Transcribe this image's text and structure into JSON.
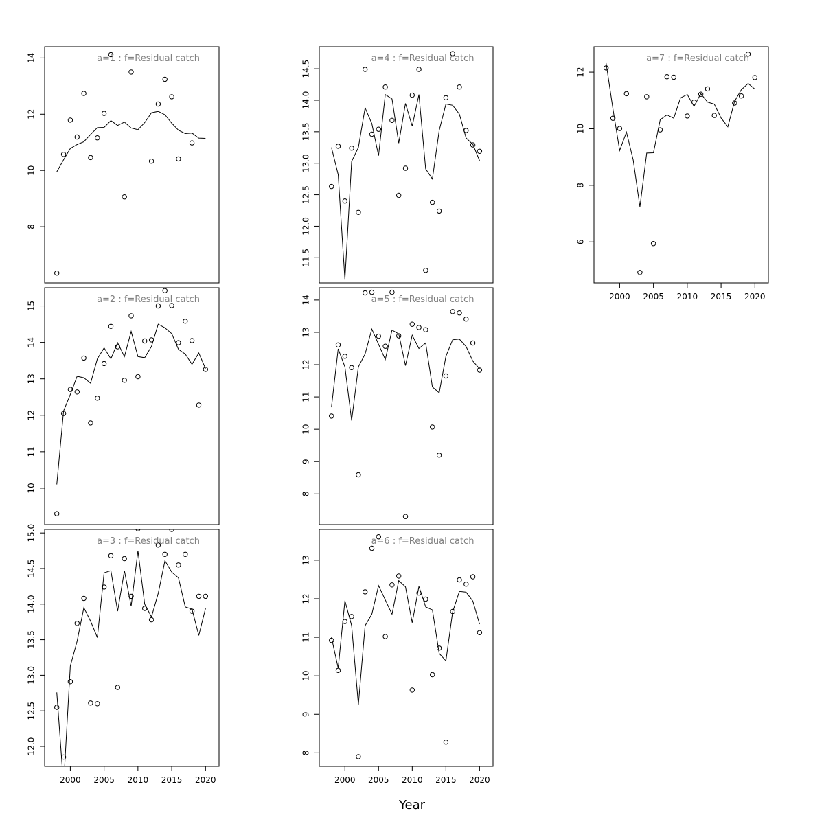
{
  "figure": {
    "xlabel": "Year",
    "marker": "open-circle",
    "line_color": "#000000",
    "title_color": "#808080"
  },
  "chart_data": [
    {
      "type": "scatter",
      "title": "a=1  :  f=Residual catch",
      "xlim": [
        1996.2,
        2022.0
      ],
      "ylim": [
        6.0,
        14.4
      ],
      "xticks": [],
      "yticks": [
        8,
        10,
        12,
        14
      ],
      "series": [
        {
          "kind": "points",
          "x": [
            1998,
            1999,
            2000,
            2001,
            2002,
            2003,
            2004,
            2005,
            2006,
            2008,
            2009,
            2012,
            2013,
            2014,
            2015,
            2016,
            2018
          ],
          "y": [
            6.35,
            10.57,
            11.79,
            11.19,
            12.74,
            10.46,
            11.16,
            12.03,
            14.12,
            9.06,
            13.5,
            10.33,
            12.36,
            13.24,
            12.62,
            10.41,
            10.98
          ]
        },
        {
          "kind": "line",
          "x": [
            1998,
            1999,
            2000,
            2001,
            2002,
            2003,
            2004,
            2005,
            2006,
            2007,
            2008,
            2009,
            2010,
            2011,
            2012,
            2013,
            2014,
            2015,
            2016,
            2017,
            2018,
            2019,
            2020
          ],
          "y": [
            9.95,
            10.38,
            10.78,
            10.92,
            11.02,
            11.28,
            11.52,
            11.53,
            11.77,
            11.6,
            11.72,
            11.51,
            11.45,
            11.7,
            12.05,
            12.1,
            11.98,
            11.68,
            11.43,
            11.31,
            11.33,
            11.15,
            11.14
          ]
        }
      ]
    },
    {
      "type": "scatter",
      "title": "a=2  :  f=Residual catch",
      "xlim": [
        1996.2,
        2022.0
      ],
      "ylim": [
        9.0,
        15.5
      ],
      "xticks": [],
      "yticks": [
        10,
        11,
        12,
        13,
        14,
        15
      ],
      "series": [
        {
          "kind": "points",
          "x": [
            1998,
            1999,
            2000,
            2001,
            2002,
            2003,
            2004,
            2005,
            2006,
            2007,
            2008,
            2009,
            2010,
            2011,
            2012,
            2013,
            2014,
            2015,
            2016,
            2017,
            2018,
            2019,
            2020
          ],
          "y": [
            9.3,
            12.05,
            12.71,
            12.64,
            13.57,
            11.79,
            12.47,
            13.42,
            14.44,
            13.88,
            12.96,
            14.73,
            13.06,
            14.04,
            14.07,
            15.0,
            15.42,
            15.01,
            13.99,
            14.58,
            14.05,
            12.28,
            13.26
          ]
        },
        {
          "kind": "line",
          "x": [
            1998,
            1999,
            2000,
            2001,
            2002,
            2003,
            2004,
            2005,
            2006,
            2007,
            2008,
            2009,
            2010,
            2011,
            2012,
            2013,
            2014,
            2015,
            2016,
            2017,
            2018,
            2019,
            2020
          ],
          "y": [
            10.1,
            12.12,
            12.57,
            13.07,
            13.03,
            12.88,
            13.55,
            13.85,
            13.55,
            13.99,
            13.61,
            14.3,
            13.61,
            13.58,
            13.89,
            14.5,
            14.4,
            14.24,
            13.81,
            13.68,
            13.4,
            13.71,
            13.28
          ]
        }
      ]
    },
    {
      "type": "scatter",
      "title": "a=3  :  f=Residual catch",
      "xlim": [
        1996.2,
        2022.0
      ],
      "ylim": [
        11.72,
        15.05
      ],
      "xticks": [
        2000,
        2005,
        2010,
        2015,
        2020
      ],
      "yticks": [
        12.0,
        12.5,
        13.0,
        13.5,
        14.0,
        14.5,
        15.0
      ],
      "series": [
        {
          "kind": "points",
          "x": [
            1998,
            1999,
            2000,
            2001,
            2002,
            2003,
            2004,
            2005,
            2006,
            2007,
            2008,
            2009,
            2010,
            2011,
            2012,
            2013,
            2014,
            2015,
            2016,
            2017,
            2018,
            2019,
            2020
          ],
          "y": [
            12.55,
            11.85,
            12.91,
            13.73,
            14.08,
            12.61,
            12.6,
            14.24,
            14.68,
            12.83,
            14.64,
            14.11,
            15.06,
            13.94,
            13.78,
            14.83,
            14.7,
            15.05,
            14.55,
            14.7,
            13.9,
            14.11,
            14.11
          ]
        },
        {
          "kind": "line",
          "x": [
            1998,
            1999,
            2000,
            2001,
            2002,
            2003,
            2004,
            2005,
            2006,
            2007,
            2008,
            2009,
            2010,
            2011,
            2012,
            2013,
            2014,
            2015,
            2016,
            2017,
            2018,
            2019,
            2020
          ],
          "y": [
            12.76,
            11.45,
            13.13,
            13.48,
            13.95,
            13.76,
            13.53,
            14.44,
            14.47,
            13.9,
            14.47,
            13.97,
            14.75,
            14.0,
            13.82,
            14.15,
            14.61,
            14.45,
            14.37,
            13.96,
            13.93,
            13.56,
            13.94
          ]
        }
      ]
    },
    {
      "type": "scatter",
      "title": "a=4  :  f=Residual catch",
      "xlim": [
        1996.2,
        2022.0
      ],
      "ylim": [
        11.1,
        14.85
      ],
      "xticks": [],
      "yticks": [
        11.5,
        12.0,
        12.5,
        13.0,
        13.5,
        14.0,
        14.5
      ],
      "series": [
        {
          "kind": "points",
          "x": [
            1998,
            1999,
            2000,
            2001,
            2002,
            2003,
            2004,
            2005,
            2006,
            2007,
            2008,
            2009,
            2010,
            2011,
            2012,
            2013,
            2014,
            2015,
            2016,
            2017,
            2018,
            2019,
            2020
          ],
          "y": [
            12.63,
            13.27,
            12.4,
            13.24,
            12.22,
            14.49,
            13.46,
            13.54,
            14.21,
            13.68,
            12.49,
            12.92,
            14.08,
            14.49,
            11.3,
            12.38,
            12.24,
            14.04,
            14.74,
            14.21,
            13.52,
            13.29,
            13.19
          ]
        },
        {
          "kind": "line",
          "x": [
            1998,
            1999,
            2000,
            2001,
            2002,
            2003,
            2004,
            2005,
            2006,
            2007,
            2008,
            2009,
            2010,
            2011,
            2012,
            2013,
            2014,
            2015,
            2016,
            2017,
            2018,
            2019,
            2020
          ],
          "y": [
            13.25,
            12.82,
            11.15,
            13.03,
            13.25,
            13.88,
            13.63,
            13.12,
            14.09,
            14.02,
            13.32,
            13.95,
            13.59,
            14.09,
            12.91,
            12.75,
            13.52,
            13.94,
            13.92,
            13.78,
            13.4,
            13.3,
            13.04
          ]
        }
      ]
    },
    {
      "type": "scatter",
      "title": "a=5  :  f=Residual catch",
      "xlim": [
        1996.2,
        2022.0
      ],
      "ylim": [
        7.05,
        14.38
      ],
      "xticks": [],
      "yticks": [
        8,
        9,
        10,
        11,
        12,
        13,
        14
      ],
      "series": [
        {
          "kind": "points",
          "x": [
            1998,
            1999,
            2000,
            2001,
            2002,
            2003,
            2004,
            2005,
            2006,
            2007,
            2008,
            2009,
            2010,
            2011,
            2012,
            2013,
            2014,
            2015,
            2016,
            2017,
            2018,
            2019,
            2020
          ],
          "y": [
            10.41,
            12.61,
            12.26,
            11.91,
            8.59,
            14.22,
            14.24,
            12.88,
            12.57,
            14.24,
            12.89,
            7.3,
            13.25,
            13.15,
            13.08,
            10.07,
            9.2,
            11.65,
            13.64,
            13.6,
            13.41,
            12.67,
            11.83
          ]
        },
        {
          "kind": "line",
          "x": [
            1998,
            1999,
            2000,
            2001,
            2002,
            2003,
            2004,
            2005,
            2006,
            2007,
            2008,
            2009,
            2010,
            2011,
            2012,
            2013,
            2014,
            2015,
            2016,
            2017,
            2018,
            2019,
            2020
          ],
          "y": [
            10.68,
            12.49,
            11.93,
            10.27,
            11.93,
            12.33,
            13.1,
            12.63,
            12.16,
            13.07,
            12.95,
            11.97,
            12.91,
            12.5,
            12.67,
            11.31,
            11.13,
            12.26,
            12.77,
            12.79,
            12.56,
            12.11,
            11.87
          ]
        }
      ]
    },
    {
      "type": "scatter",
      "title": "a=6  :  f=Residual catch",
      "xlim": [
        1996.2,
        2022.0
      ],
      "ylim": [
        7.65,
        13.8
      ],
      "xticks": [
        2000,
        2005,
        2010,
        2015,
        2020
      ],
      "yticks": [
        8,
        9,
        10,
        11,
        12,
        13
      ],
      "series": [
        {
          "kind": "points",
          "x": [
            1998,
            1999,
            2000,
            2001,
            2002,
            2003,
            2004,
            2005,
            2006,
            2007,
            2008,
            2010,
            2011,
            2012,
            2013,
            2014,
            2015,
            2016,
            2017,
            2018,
            2019,
            2020
          ],
          "y": [
            10.92,
            10.14,
            11.41,
            11.54,
            7.9,
            12.18,
            13.31,
            13.61,
            11.02,
            12.36,
            12.59,
            9.63,
            12.15,
            11.99,
            10.03,
            10.72,
            8.28,
            11.67,
            12.49,
            12.38,
            12.57,
            11.12
          ]
        },
        {
          "kind": "line",
          "x": [
            1998,
            1999,
            2000,
            2001,
            2002,
            2003,
            2004,
            2005,
            2006,
            2007,
            2008,
            2009,
            2010,
            2011,
            2012,
            2013,
            2014,
            2015,
            2016,
            2017,
            2018,
            2019,
            2020
          ],
          "y": [
            11.0,
            10.2,
            11.95,
            11.3,
            9.25,
            11.3,
            11.6,
            12.34,
            11.97,
            11.6,
            12.47,
            12.31,
            11.38,
            12.32,
            11.79,
            11.71,
            10.58,
            10.39,
            11.66,
            12.19,
            12.17,
            11.94,
            11.34
          ]
        }
      ]
    },
    {
      "type": "scatter",
      "title": "a=7  :  f=Residual catch",
      "xlim": [
        1996.2,
        2022.0
      ],
      "ylim": [
        4.55,
        12.9
      ],
      "xticks": [
        2000,
        2005,
        2010,
        2015,
        2020
      ],
      "yticks": [
        6,
        8,
        10,
        12
      ],
      "series": [
        {
          "kind": "points",
          "x": [
            1998,
            1999,
            2000,
            2001,
            2003,
            2004,
            2005,
            2006,
            2007,
            2008,
            2010,
            2011,
            2012,
            2013,
            2014,
            2017,
            2018,
            2019,
            2020
          ],
          "y": [
            12.15,
            10.37,
            10.01,
            11.24,
            4.92,
            11.13,
            5.94,
            9.96,
            11.84,
            11.82,
            10.45,
            10.94,
            11.22,
            11.41,
            10.47,
            10.91,
            11.16,
            12.64,
            11.81
          ]
        },
        {
          "kind": "line",
          "x": [
            1998,
            1999,
            2000,
            2001,
            2002,
            2003,
            2004,
            2005,
            2006,
            2007,
            2008,
            2009,
            2010,
            2011,
            2012,
            2013,
            2014,
            2015,
            2016,
            2017,
            2018,
            2019,
            2020
          ],
          "y": [
            12.32,
            10.7,
            9.23,
            9.88,
            8.9,
            7.24,
            9.14,
            9.15,
            10.32,
            10.49,
            10.37,
            11.09,
            11.21,
            10.79,
            11.24,
            10.94,
            10.87,
            10.38,
            10.07,
            10.97,
            11.38,
            11.6,
            11.4
          ]
        }
      ]
    }
  ]
}
